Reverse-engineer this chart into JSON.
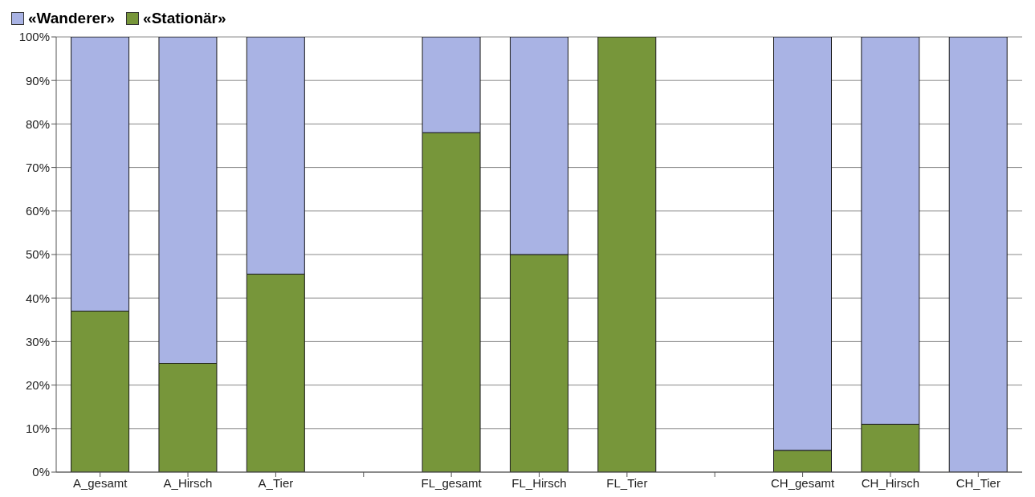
{
  "chart_data": {
    "type": "bar",
    "stacked": true,
    "categories": [
      "A_gesamt",
      "A_Hirsch",
      "A_Tier",
      null,
      "FL_gesamt",
      "FL_Hirsch",
      "FL_Tier",
      null,
      "CH_gesamt",
      "CH_Hirsch",
      "CH_Tier"
    ],
    "series": [
      {
        "name": "«Stationär»",
        "color": "#77963a",
        "values": [
          37,
          25,
          45.5,
          null,
          78,
          50,
          100,
          null,
          5,
          11,
          0
        ]
      },
      {
        "name": "«Wanderer»",
        "color": "#a9b3e4",
        "values": [
          63,
          75,
          54.5,
          null,
          22,
          50,
          0,
          null,
          95,
          89,
          100
        ]
      }
    ],
    "ylim": [
      0,
      100
    ],
    "yticks": [
      {
        "value": 0,
        "label": "0%"
      },
      {
        "value": 10,
        "label": "10%"
      },
      {
        "value": 20,
        "label": "20%"
      },
      {
        "value": 30,
        "label": "30%"
      },
      {
        "value": 40,
        "label": "40%"
      },
      {
        "value": 50,
        "label": "50%"
      },
      {
        "value": 60,
        "label": "60%"
      },
      {
        "value": 70,
        "label": "70%"
      },
      {
        "value": 80,
        "label": "80%"
      },
      {
        "value": 90,
        "label": "90%"
      },
      {
        "value": 100,
        "label": "100%"
      }
    ],
    "grid": "y",
    "legend": "top left"
  }
}
